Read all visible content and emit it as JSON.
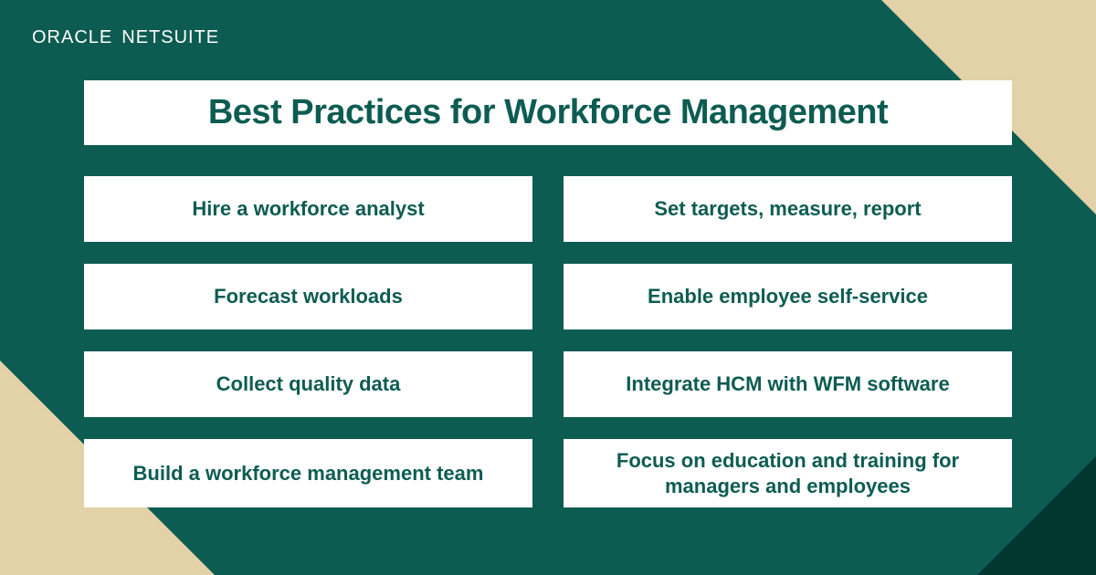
{
  "logo": {
    "oracle": "ORACLE",
    "netsuite": "NETSUITE"
  },
  "title": "Best Practices for Workforce Management",
  "cards": {
    "left": [
      "Hire a workforce analyst",
      "Forecast workloads",
      "Collect quality data",
      "Build a workforce management team"
    ],
    "right": [
      "Set targets, measure, report",
      "Enable employee self-service",
      "Integrate HCM with WFM software",
      "Focus on education and training for managers and employees"
    ]
  },
  "colors": {
    "background": "#0d5c52",
    "card_bg": "#ffffff",
    "text": "#0d5c52",
    "logo_text": "#ffffff",
    "accent_triangle": "#e3d2a8",
    "dark_triangle": "#02372f"
  },
  "typography": {
    "title_fontsize": 38,
    "title_weight": 800,
    "card_fontsize": 22,
    "card_weight": 700,
    "logo_fontsize": 20
  },
  "layout": {
    "type": "infographic",
    "grid_columns": 2,
    "grid_rows": 4,
    "card_gap_row": 24,
    "card_gap_col": 34,
    "card_min_height": 72
  }
}
